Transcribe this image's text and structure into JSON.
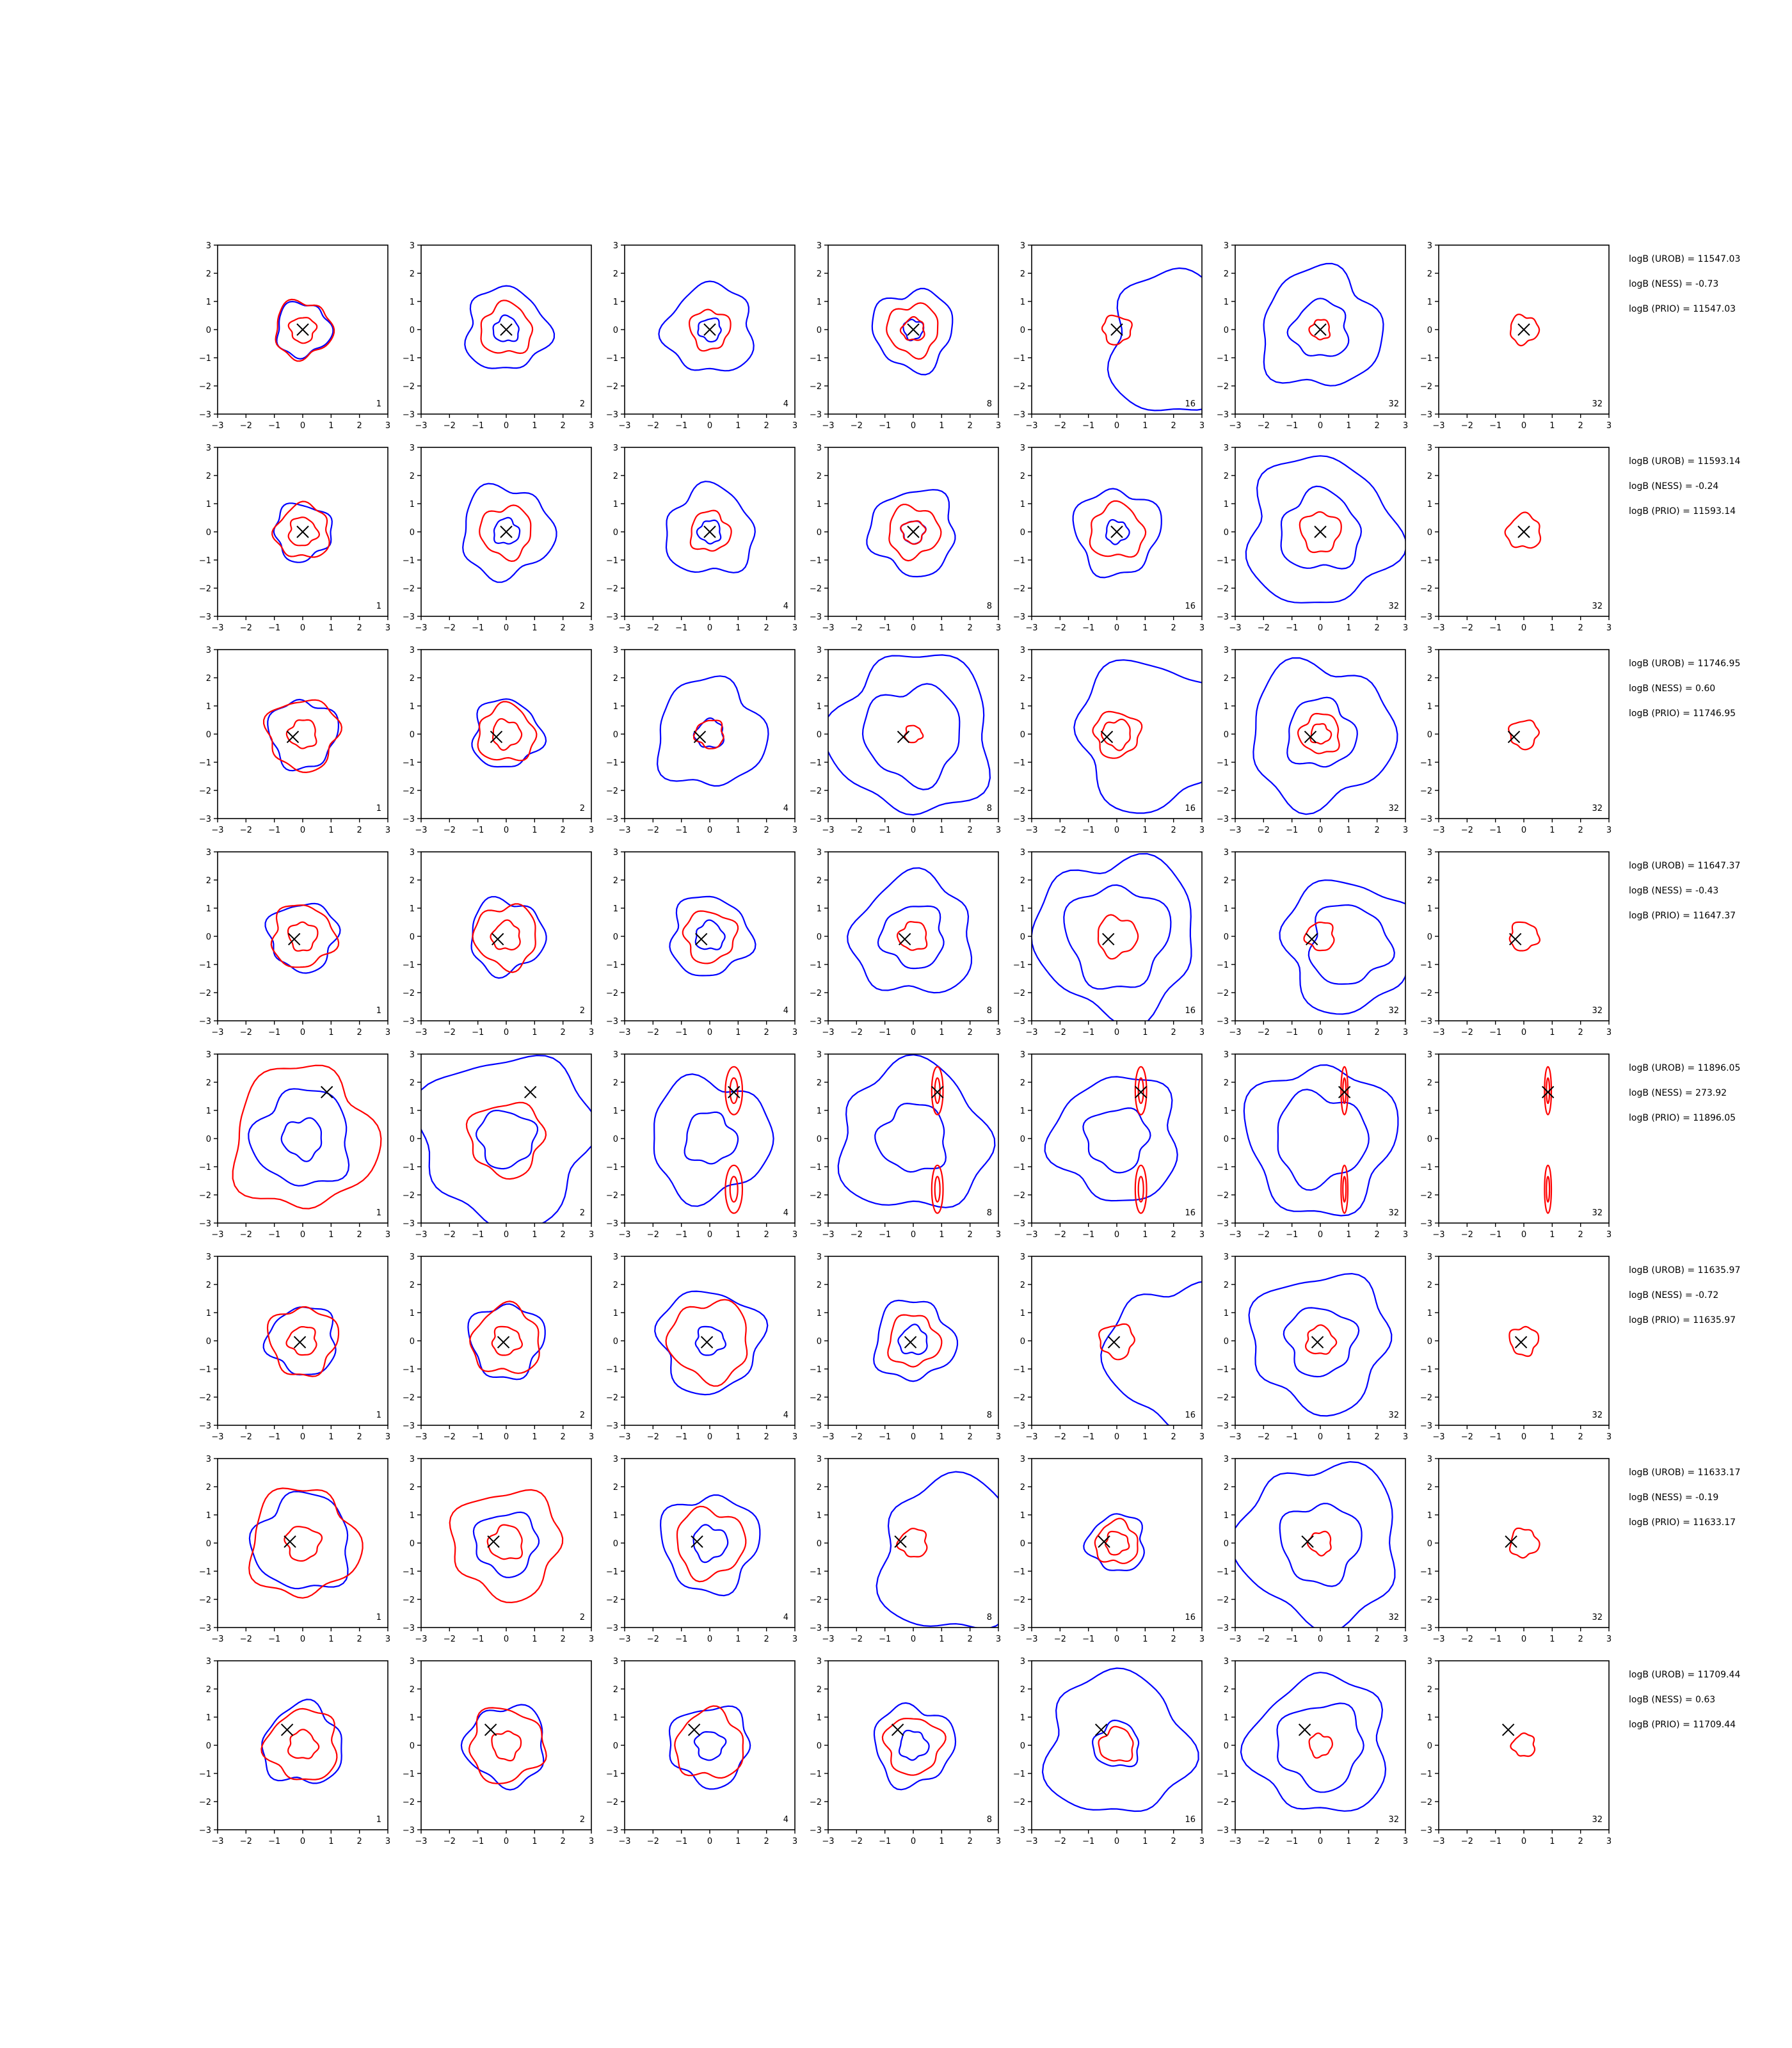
{
  "chart_data": {
    "type": "contour_grid",
    "rows": 8,
    "cols": 7,
    "xlim": [
      -3,
      3
    ],
    "ylim": [
      -3,
      3
    ],
    "xticks": [
      -3,
      -2,
      -1,
      0,
      1,
      2,
      3
    ],
    "yticks": [
      -3,
      -2,
      -1,
      0,
      1,
      2,
      3
    ],
    "tick_labels": [
      "−3",
      "−2",
      "−1",
      "0",
      "1",
      "2",
      "3"
    ],
    "series_colors": {
      "blue": "#0000ff",
      "red": "#ff0000",
      "marker": "#000000"
    },
    "column_labels": [
      "1",
      "2",
      "4",
      "8",
      "16",
      "32",
      "32"
    ],
    "panels": [
      {
        "marker": [
          0,
          0
        ],
        "notes": [
          "logB (UROB) = 11547.03",
          "logB (NESS) = -0.73",
          "logB (PRIO) = 11547.03"
        ],
        "cells": [
          {
            "blue": [
              0.95
            ],
            "red": [
              0.45,
              1.0
            ]
          },
          {
            "blue": [
              0.45,
              1.45
            ],
            "red": [
              0.9
            ]
          },
          {
            "blue": [
              0.4,
              1.55
            ],
            "red": [
              0.7
            ]
          },
          {
            "blue": [
              0.35,
              1.4
            ],
            "red": [
              0.4,
              0.9
            ]
          },
          {
            "blue": [
              2.5
            ],
            "blue_center": [
              2.2,
              -0.5
            ],
            "red": [
              0.5
            ]
          },
          {
            "blue": [
              1.0,
              2.1
            ],
            "red": [
              0.35
            ]
          },
          {
            "blue": [],
            "red": [
              0.5
            ]
          }
        ]
      },
      {
        "marker": [
          0,
          0
        ],
        "notes": [
          "logB (UROB) = 11593.14",
          "logB (NESS) = -0.24",
          "logB (PRIO) = 11593.14"
        ],
        "cells": [
          {
            "blue": [
              1.0
            ],
            "red": [
              0.5,
              0.95
            ]
          },
          {
            "blue": [
              0.45,
              1.6
            ],
            "red": [
              0.9
            ]
          },
          {
            "blue": [
              0.4,
              1.55
            ],
            "red": [
              0.7
            ]
          },
          {
            "blue": [
              0.4,
              1.5
            ],
            "red": [
              0.4,
              0.9
            ]
          },
          {
            "blue": [
              0.4,
              1.5
            ],
            "red": [
              0.95
            ]
          },
          {
            "blue": [
              1.4,
              2.6
            ],
            "red": [
              0.7
            ]
          },
          {
            "blue": [],
            "red": [
              0.6
            ]
          }
        ]
      },
      {
        "marker": [
          -0.35,
          -0.1
        ],
        "notes": [
          "logB (UROB) = 11746.95",
          "logB (NESS) = 0.60",
          "logB (PRIO) = 11746.95"
        ],
        "cells": [
          {
            "blue": [
              1.2
            ],
            "red": [
              0.5,
              1.25
            ]
          },
          {
            "blue": [
              1.2
            ],
            "red": [
              0.5,
              1.0
            ]
          },
          {
            "blue": [
              0.5,
              1.9
            ],
            "red": [
              0.5
            ]
          },
          {
            "blue": [
              1.7,
              2.8
            ],
            "red": [
              0.3
            ]
          },
          {
            "blue": [
              2.6
            ],
            "blue_center": [
              1.2,
              0
            ],
            "red": [
              0.5,
              0.8
            ]
          },
          {
            "blue": [
              1.2,
              2.5
            ],
            "red": [
              0.35,
              0.7
            ]
          },
          {
            "blue": [],
            "red": [
              0.5
            ]
          }
        ]
      },
      {
        "marker": [
          -0.3,
          -0.1
        ],
        "notes": [
          "logB (UROB) = 11647.37",
          "logB (NESS) = -0.43",
          "logB (PRIO) = 11647.37"
        ],
        "cells": [
          {
            "blue": [
              1.2
            ],
            "red": [
              0.5,
              1.1
            ]
          },
          {
            "blue": [
              1.3
            ],
            "red": [
              0.5,
              1.1
            ]
          },
          {
            "blue": [
              0.5,
              1.4
            ],
            "red": [
              0.9
            ]
          },
          {
            "blue": [
              1.1,
              2.1
            ],
            "red": [
              0.5
            ]
          },
          {
            "blue": [
              1.8,
              2.8
            ],
            "red": [
              0.7
            ]
          },
          {
            "blue": [
              1.4,
              2.3
            ],
            "blue_center": [
              1.0,
              -0.3
            ],
            "red": [
              0.5
            ]
          },
          {
            "blue": [],
            "red": [
              0.5
            ]
          }
        ]
      },
      {
        "marker": [
          0.85,
          1.65
        ],
        "notes": [
          "logB (UROB) = 11896.05",
          "logB (NESS) = 273.92",
          "logB (PRIO) = 11896.05"
        ],
        "cells": [
          {
            "blue": [
              0.7,
              1.7
            ],
            "red": [
              2.5
            ]
          },
          {
            "blue": [
              1.0,
              3.0
            ],
            "red": [
              1.3
            ]
          },
          {
            "blue": [
              0.9,
              2.1
            ],
            "red": [
              0.3
            ]
          },
          {
            "blue": [
              1.2,
              2.6
            ],
            "red": [
              0.2
            ]
          },
          {
            "blue": [
              1.1,
              2.2
            ],
            "red": [
              0.2
            ]
          },
          {
            "blue": [
              1.6,
              2.6
            ],
            "red": [
              0.12
            ]
          },
          {
            "blue": [],
            "red": [
              0.12
            ]
          }
        ]
      },
      {
        "marker": [
          -0.1,
          -0.05
        ],
        "notes": [
          "logB (UROB) = 11635.97",
          "logB (NESS) = -0.72",
          "logB (PRIO) = 11635.97"
        ],
        "cells": [
          {
            "blue": [
              1.2
            ],
            "red": [
              0.5,
              1.2
            ]
          },
          {
            "blue": [
              1.3
            ],
            "red": [
              0.5,
              1.2
            ]
          },
          {
            "blue": [
              0.5,
              1.8
            ],
            "red": [
              1.4
            ]
          },
          {
            "blue": [
              0.5,
              1.4
            ],
            "red": [
              0.9
            ]
          },
          {
            "blue": [
              2.5
            ],
            "blue_center": [
              2.2,
              -0.5
            ],
            "red": [
              0.6
            ]
          },
          {
            "blue": [
              1.2,
              2.4
            ],
            "red": [
              0.5
            ]
          },
          {
            "blue": [],
            "red": [
              0.5
            ]
          }
        ]
      },
      {
        "marker": [
          -0.45,
          0.05
        ],
        "notes": [
          "logB (UROB) = 11633.17",
          "logB (NESS) = -0.19",
          "logB (PRIO) = 11633.17"
        ],
        "cells": [
          {
            "blue": [
              1.7
            ],
            "red": [
              0.6,
              1.9
            ]
          },
          {
            "blue": [
              1.1
            ],
            "red": [
              0.6,
              1.9
            ]
          },
          {
            "blue": [
              0.6,
              1.7
            ],
            "red": [
              1.2
            ]
          },
          {
            "blue": [
              2.7
            ],
            "blue_center": [
              1.5,
              -0.5
            ],
            "red": [
              0.5
            ]
          },
          {
            "blue": [
              1.0
            ],
            "red": [
              0.4,
              0.75
            ]
          },
          {
            "blue": [
              1.4,
              2.8
            ],
            "red": [
              0.4
            ]
          },
          {
            "blue": [],
            "red": [
              0.5
            ]
          }
        ]
      },
      {
        "marker": [
          -0.55,
          0.55
        ],
        "notes": [
          "logB (UROB) = 11709.44",
          "logB (NESS) = 0.63",
          "logB (PRIO) = 11709.44"
        ],
        "cells": [
          {
            "blue": [
              1.4
            ],
            "red": [
              0.5,
              1.25
            ]
          },
          {
            "blue": [
              1.4
            ],
            "red": [
              0.5,
              1.3
            ]
          },
          {
            "blue": [
              0.5,
              1.4
            ],
            "red": [
              1.2
            ]
          },
          {
            "blue": [
              0.5,
              1.4
            ],
            "red": [
              1.0
            ]
          },
          {
            "blue": [
              0.8,
              2.5
            ],
            "red": [
              0.6
            ]
          },
          {
            "blue": [
              1.5,
              2.4
            ],
            "red": [
              0.4
            ]
          },
          {
            "blue": [],
            "red": [
              0.4
            ]
          }
        ]
      }
    ]
  }
}
